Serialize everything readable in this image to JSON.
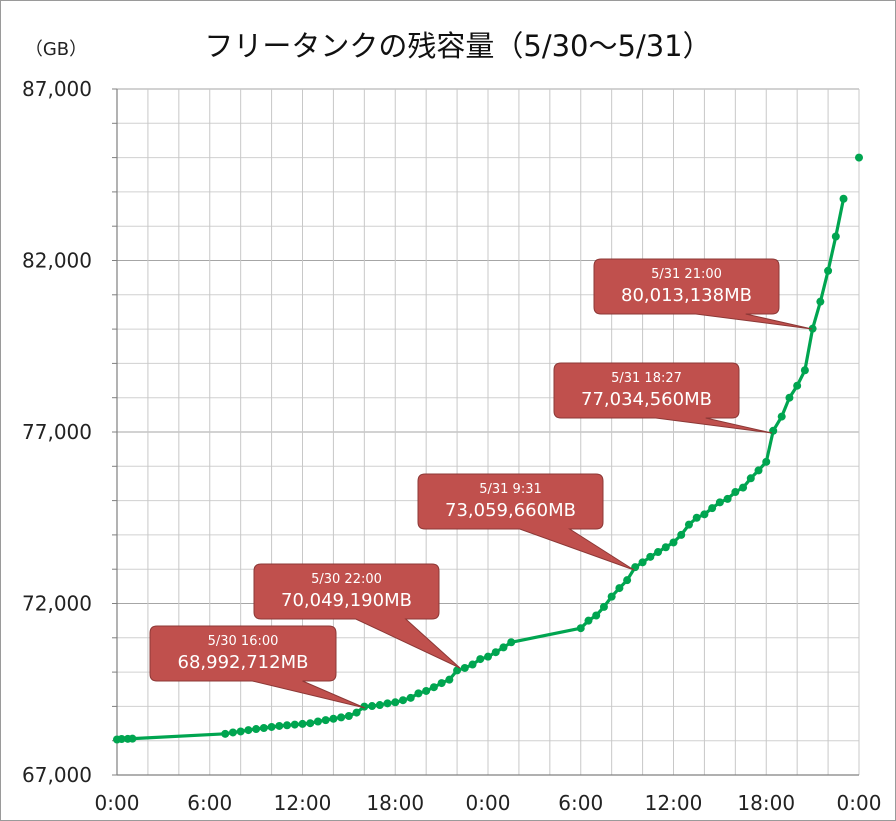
{
  "chart_data": {
    "type": "line",
    "title": "フリータンクの残容量（5/30〜5/31）",
    "unit_label": "（GB）",
    "ylim": [
      67000,
      87000
    ],
    "y_tick_labels": [
      {
        "value": 67000,
        "label": "67,000"
      },
      {
        "value": 72000,
        "label": "72,000"
      },
      {
        "value": 77000,
        "label": "77,000"
      },
      {
        "value": 82000,
        "label": "82,000"
      },
      {
        "value": 87000,
        "label": "87,000"
      }
    ],
    "y_minor_step": 1000,
    "xlim_hours": [
      0,
      48
    ],
    "x_tick_labels": [
      {
        "hour": 0,
        "label": "0:00"
      },
      {
        "hour": 6,
        "label": "6:00"
      },
      {
        "hour": 12,
        "label": "12:00"
      },
      {
        "hour": 18,
        "label": "18:00"
      },
      {
        "hour": 24,
        "label": "0:00"
      },
      {
        "hour": 30,
        "label": "6:00"
      },
      {
        "hour": 36,
        "label": "12:00"
      },
      {
        "hour": 42,
        "label": "18:00"
      },
      {
        "hour": 48,
        "label": "0:00"
      }
    ],
    "x_grid_step_hours": 2,
    "grid": true,
    "line_color": "#00a550",
    "callout_color": "#c0504d",
    "series": [
      {
        "points": [
          [
            0.0,
            68035
          ],
          [
            0.3,
            68050
          ],
          [
            0.7,
            68055
          ],
          [
            1.0,
            68060
          ],
          [
            7.0,
            68200
          ],
          [
            7.5,
            68240
          ],
          [
            8.0,
            68270
          ],
          [
            8.5,
            68310
          ],
          [
            9.0,
            68340
          ],
          [
            9.5,
            68370
          ],
          [
            10.0,
            68400
          ],
          [
            10.5,
            68430
          ],
          [
            11.0,
            68450
          ],
          [
            11.5,
            68470
          ],
          [
            12.0,
            68490
          ],
          [
            12.5,
            68510
          ],
          [
            13.0,
            68560
          ],
          [
            13.5,
            68600
          ],
          [
            14.0,
            68640
          ],
          [
            14.5,
            68680
          ],
          [
            15.0,
            68720
          ],
          [
            15.5,
            68820
          ],
          [
            16.0,
            68993
          ],
          [
            16.5,
            69010
          ],
          [
            17.0,
            69040
          ],
          [
            17.5,
            69090
          ],
          [
            18.0,
            69120
          ],
          [
            18.5,
            69180
          ],
          [
            19.0,
            69250
          ],
          [
            19.5,
            69380
          ],
          [
            20.0,
            69450
          ],
          [
            20.5,
            69560
          ],
          [
            21.0,
            69680
          ],
          [
            21.5,
            69780
          ],
          [
            22.0,
            70049
          ],
          [
            22.5,
            70120
          ],
          [
            23.0,
            70220
          ],
          [
            23.5,
            70380
          ],
          [
            24.0,
            70450
          ],
          [
            24.5,
            70580
          ],
          [
            25.0,
            70720
          ],
          [
            25.5,
            70870
          ],
          [
            30.0,
            71280
          ],
          [
            30.5,
            71500
          ],
          [
            31.0,
            71650
          ],
          [
            31.5,
            71900
          ],
          [
            32.0,
            72200
          ],
          [
            32.5,
            72450
          ],
          [
            33.0,
            72680
          ],
          [
            33.52,
            73060
          ],
          [
            34.0,
            73200
          ],
          [
            34.5,
            73360
          ],
          [
            35.0,
            73500
          ],
          [
            35.5,
            73640
          ],
          [
            36.0,
            73780
          ],
          [
            36.5,
            74000
          ],
          [
            37.0,
            74300
          ],
          [
            37.5,
            74500
          ],
          [
            38.0,
            74600
          ],
          [
            38.5,
            74780
          ],
          [
            39.0,
            74950
          ],
          [
            39.5,
            75050
          ],
          [
            40.0,
            75250
          ],
          [
            40.5,
            75380
          ],
          [
            41.0,
            75650
          ],
          [
            41.5,
            75880
          ],
          [
            42.0,
            76130
          ],
          [
            42.45,
            77035
          ],
          [
            43.0,
            77450
          ],
          [
            43.5,
            78000
          ],
          [
            44.0,
            78350
          ],
          [
            44.5,
            78800
          ],
          [
            45.0,
            80013
          ],
          [
            45.5,
            80800
          ],
          [
            46.0,
            81700
          ],
          [
            46.5,
            82700
          ],
          [
            47.0,
            83800
          ]
        ],
        "extra_points": [
          [
            48.0,
            85000
          ]
        ]
      }
    ],
    "annotations": [
      {
        "time": "5/30 16:00",
        "value": "68,992,712MB",
        "hour": 16.0,
        "gb": 68993
      },
      {
        "time": "5/30 22:00",
        "value": "70,049,190MB",
        "hour": 22.0,
        "gb": 70049
      },
      {
        "time": "5/31 9:31",
        "value": "73,059,660MB",
        "hour": 33.52,
        "gb": 73060
      },
      {
        "time": "5/31 18:27",
        "value": "77,034,560MB",
        "hour": 42.45,
        "gb": 77035
      },
      {
        "time": "5/31 21:00",
        "value": "80,013,138MB",
        "hour": 45.0,
        "gb": 80013
      }
    ]
  }
}
